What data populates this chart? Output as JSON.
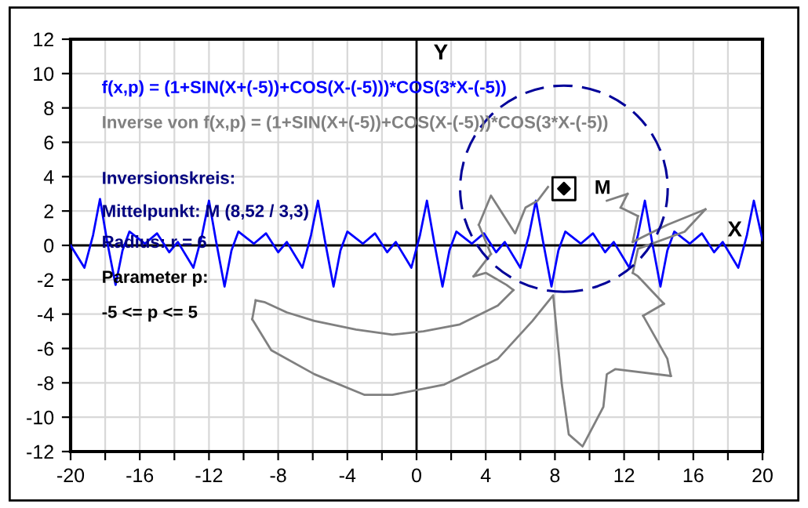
{
  "chart_data": {
    "type": "line",
    "xlabel": "X",
    "ylabel": "Y",
    "xlim": [
      -20,
      20
    ],
    "ylim": [
      -12,
      12
    ],
    "xticks": [
      -20,
      {
        "value": -18,
        "label": null
      },
      -16,
      {
        "value": -14,
        "label": null
      },
      -12,
      {
        "value": -10,
        "label": null
      },
      -8,
      {
        "value": -6,
        "label": null
      },
      -4,
      {
        "value": -2,
        "label": null
      },
      0,
      {
        "value": 2,
        "label": null
      },
      4,
      {
        "value": 6,
        "label": null
      },
      8,
      {
        "value": 10,
        "label": null
      },
      12,
      {
        "value": 14,
        "label": null
      },
      16,
      {
        "value": 18,
        "label": null
      },
      20
    ],
    "yticks": [
      -12,
      -10,
      -8,
      -6,
      -4,
      -2,
      0,
      2,
      4,
      6,
      8,
      10,
      12
    ],
    "grid": true,
    "legend": "top left",
    "line_style": "solid",
    "marker": "none",
    "series": [
      {
        "name": "f(x,p) = (1+SIN(X+(-5))+COS(X-(-5)))*COS(3*X-(-5))",
        "color": "#0000ff",
        "x": [
          -20,
          -19.2,
          -18.7,
          -18.3,
          -17.9,
          -17.4,
          -17.0,
          -16.6,
          -15.7,
          -15.0,
          -14.3,
          -13.8,
          -12.9,
          -12.4,
          -12.0,
          -11.6,
          -11.1,
          -10.7,
          -10.3,
          -9.4,
          -8.7,
          -8.0,
          -7.5,
          -6.6,
          -6.1,
          -5.7,
          -5.3,
          -4.8,
          -4.4,
          -4.0,
          -3.1,
          -2.4,
          -1.7,
          -1.2,
          -0.3,
          0.2,
          0.6,
          1.0,
          1.5,
          1.9,
          2.3,
          3.2,
          3.9,
          4.6,
          5.1,
          6.0,
          6.5,
          6.9,
          7.3,
          7.8,
          8.2,
          8.6,
          9.5,
          10.2,
          10.9,
          11.4,
          12.3,
          12.8,
          13.2,
          13.6,
          14.1,
          14.5,
          14.9,
          15.8,
          16.5,
          17.2,
          17.7,
          18.6,
          19.1,
          19.5,
          20
        ],
        "values": [
          0.0,
          -1.3,
          0.6,
          2.7,
          0.3,
          -2.3,
          -0.3,
          0.8,
          0.1,
          0.7,
          -0.4,
          0.2,
          -1.3,
          0.6,
          2.6,
          0.3,
          -2.4,
          -0.3,
          0.8,
          0.1,
          0.7,
          -0.4,
          0.2,
          -1.3,
          0.6,
          2.6,
          0.3,
          -2.4,
          -0.3,
          0.8,
          0.1,
          0.7,
          -0.4,
          0.2,
          -1.3,
          0.6,
          2.6,
          0.3,
          -2.4,
          -0.3,
          0.8,
          0.1,
          0.7,
          -0.4,
          0.2,
          -1.3,
          0.6,
          2.6,
          0.3,
          -2.4,
          -0.3,
          0.8,
          0.1,
          0.7,
          -0.4,
          0.2,
          -1.3,
          0.6,
          2.6,
          0.3,
          -2.4,
          -0.3,
          0.8,
          0.1,
          0.7,
          -0.4,
          0.2,
          -1.3,
          0.6,
          2.6,
          0.3
        ]
      },
      {
        "name": "Inverse von f(x,p) = (1+SIN(X+(-5))+COS(X-(-5)))*COS(3*X-(-5))",
        "color": "#808080",
        "x": [
          -9.3,
          -8.8,
          -7.5,
          -5.9,
          -3.5,
          -1.4,
          0.4,
          2.5,
          4.7,
          5.6
        ],
        "values": [
          -3.2,
          -3.3,
          -3.9,
          -4.4,
          -4.9,
          -5.2,
          -5.0,
          -4.6,
          -3.5,
          -2.6
        ]
      },
      {
        "color": "#808080",
        "x": [
          5.6,
          5.2,
          4.0,
          3.3
        ],
        "values": [
          -2.6,
          -2.3,
          -1.6,
          -1.8
        ]
      },
      {
        "color": "#808080",
        "x": [
          3.3,
          4.3
        ],
        "values": [
          -1.8,
          -0.5
        ]
      },
      {
        "color": "#808080",
        "x": [
          4.3,
          3.6
        ],
        "values": [
          -0.5,
          1.2
        ]
      },
      {
        "color": "#808080",
        "x": [
          3.6,
          4.3,
          5.7,
          6.3,
          7.0,
          7.6
        ],
        "values": [
          1.2,
          2.9,
          0.7,
          2.2,
          2.6,
          3.4
        ]
      },
      {
        "color": "#808080",
        "x": [
          11.0,
          12.2
        ],
        "values": [
          2.6,
          3.0
        ]
      },
      {
        "color": "#808080",
        "x": [
          12.2,
          11.8
        ],
        "values": [
          3.0,
          2.2
        ]
      },
      {
        "color": "#808080",
        "x": [
          11.8,
          12.8
        ],
        "values": [
          2.2,
          1.7
        ]
      },
      {
        "color": "#808080",
        "x": [
          12.8,
          12.5
        ],
        "values": [
          1.7,
          0.2
        ]
      },
      {
        "color": "#808080",
        "x": [
          12.5,
          14.5,
          16.7
        ],
        "values": [
          0.2,
          1.2,
          2.1
        ]
      },
      {
        "color": "#808080",
        "x": [
          16.7,
          15.5,
          12.8,
          12.5
        ],
        "values": [
          2.1,
          0.8,
          -0.2,
          -1.6
        ]
      },
      {
        "color": "#808080",
        "x": [
          12.5,
          12.8,
          14.3
        ],
        "values": [
          -1.6,
          -1.8,
          -3.4
        ]
      },
      {
        "color": "#808080",
        "x": [
          14.3,
          13.1
        ],
        "values": [
          -3.4,
          -4.1
        ]
      },
      {
        "color": "#808080",
        "x": [
          13.1,
          14.5,
          14.7
        ],
        "values": [
          -4.1,
          -6.6,
          -7.6
        ]
      },
      {
        "color": "#808080",
        "x": [
          14.7,
          11.5,
          11.0,
          10.8,
          9.6,
          8.8,
          8.4,
          7.9,
          6.7,
          4.7,
          1.6,
          -1.4,
          -3.0,
          -5.9,
          -8.4,
          -9.5
        ],
        "values": [
          -7.6,
          -7.2,
          -7.5,
          -9.4,
          -11.7,
          -11.0,
          -8.1,
          -2.9,
          -4.4,
          -6.6,
          -8.1,
          -8.7,
          -8.7,
          -7.5,
          -6.1,
          -4.3
        ]
      },
      {
        "color": "#808080",
        "x": [
          -9.5,
          -9.3
        ],
        "values": [
          -4.3,
          -3.2
        ]
      },
      {
        "type": "scatter",
        "marker": "square",
        "color": "#000000",
        "x": [
          8.52
        ],
        "values": [
          3.3
        ]
      }
    ],
    "annotations": [
      {
        "text": "M",
        "x": 8.52,
        "y": 3.3
      },
      "Inversionskreis:",
      "Mittelpunkt: M (8,52 / 3,3)",
      "Radius: r = 6",
      "Parameter p:",
      "-5 <= p <= 5"
    ]
  }
}
